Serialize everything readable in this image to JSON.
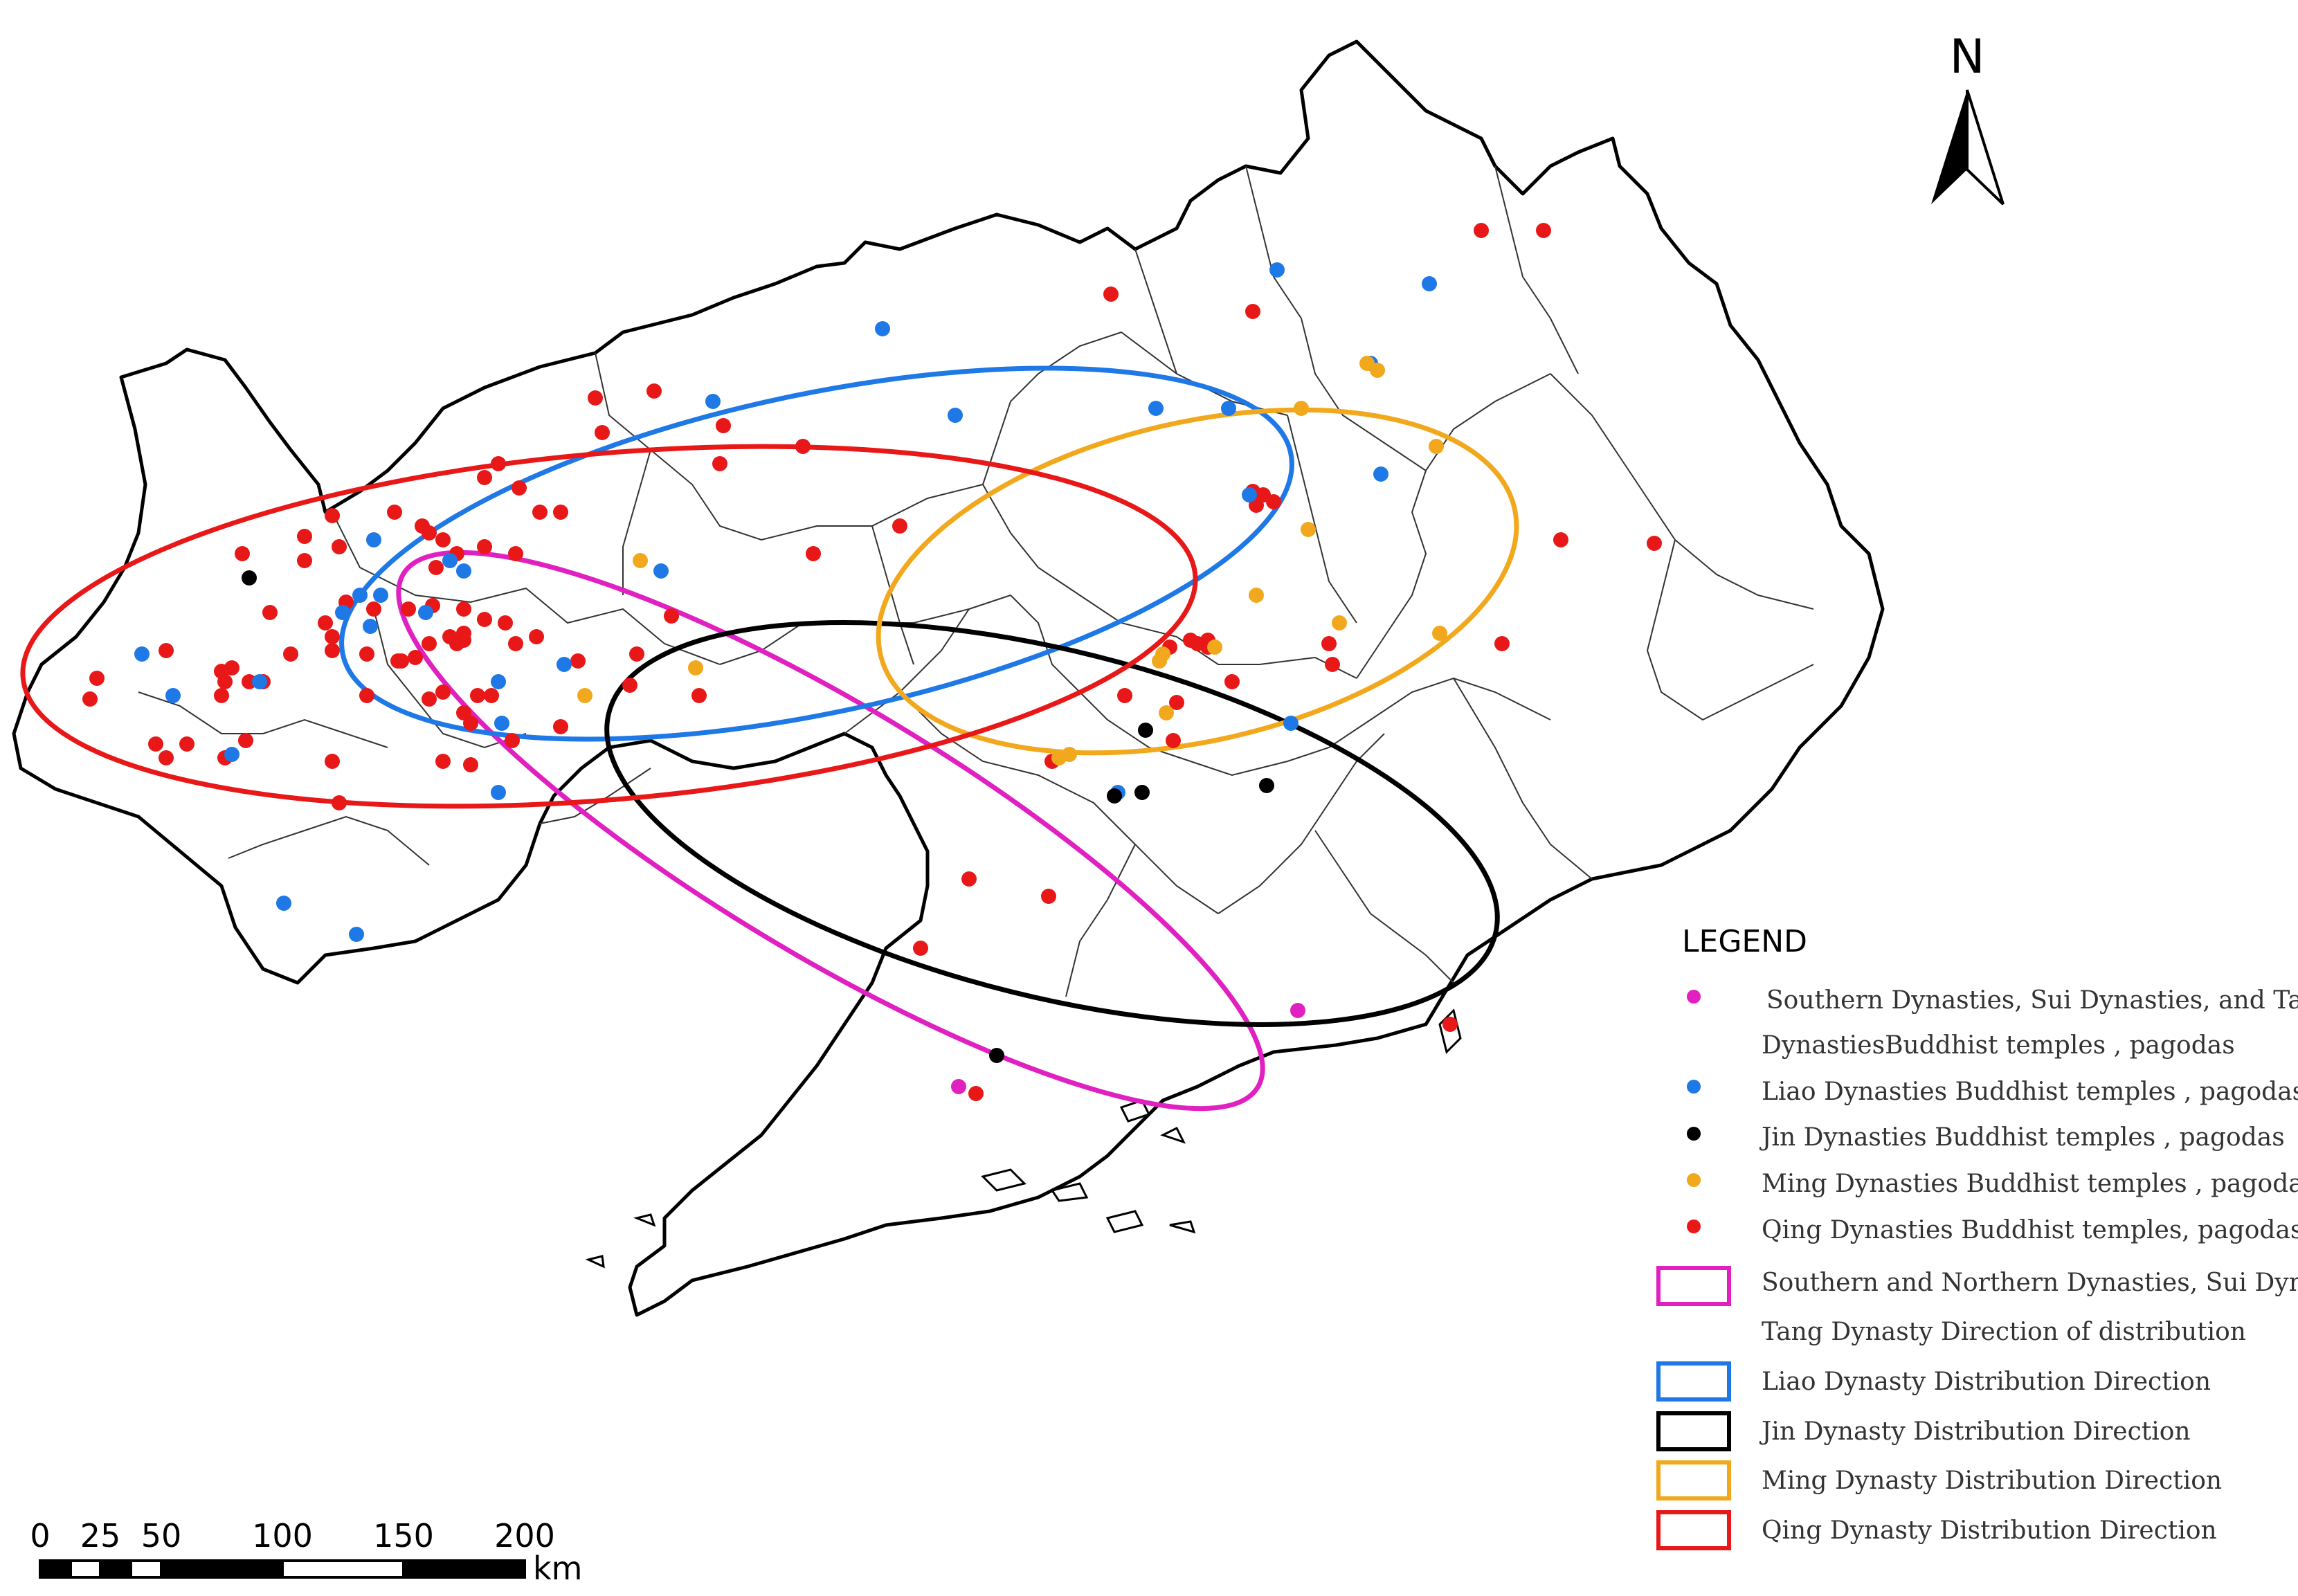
{
  "north": {
    "label": "N"
  },
  "scale_bar": {
    "ticks": [
      "0",
      "25",
      "50",
      "100",
      "150",
      "200"
    ],
    "unit": "km"
  },
  "legend": {
    "title": "LEGEND",
    "point_items": [
      {
        "lines": [
          "Southern Dynasties, Sui Dynasties, and Tang",
          "DynastiesBuddhist temples , pagodas"
        ],
        "color": "#e020c0"
      },
      {
        "lines": [
          "Liao Dynasties Buddhist temples , pagodas"
        ],
        "color": "#1e78e6"
      },
      {
        "lines": [
          "Jin Dynasties Buddhist temples , pagodas"
        ],
        "color": "#000000"
      },
      {
        "lines": [
          "Ming Dynasties Buddhist temples , pagodas"
        ],
        "color": "#f2a81c"
      },
      {
        "lines": [
          "Qing Dynasties Buddhist temples, pagodas"
        ],
        "color": "#e81818"
      }
    ],
    "ellipse_items": [
      {
        "lines": [
          "Southern and Northern Dynasties, Sui Dynasty,",
          "Tang Dynasty Direction of distribution"
        ],
        "color": "#e020c0"
      },
      {
        "lines": [
          "Liao Dynasty Distribution Direction"
        ],
        "color": "#1e78e6"
      },
      {
        "lines": [
          "Jin Dynasty Distribution Direction"
        ],
        "color": "#000000"
      },
      {
        "lines": [
          "Ming Dynasty Distribution Direction"
        ],
        "color": "#f2a81c"
      },
      {
        "lines": [
          "Qing Dynasty Distribution Direction"
        ],
        "color": "#e81818"
      }
    ]
  }
}
